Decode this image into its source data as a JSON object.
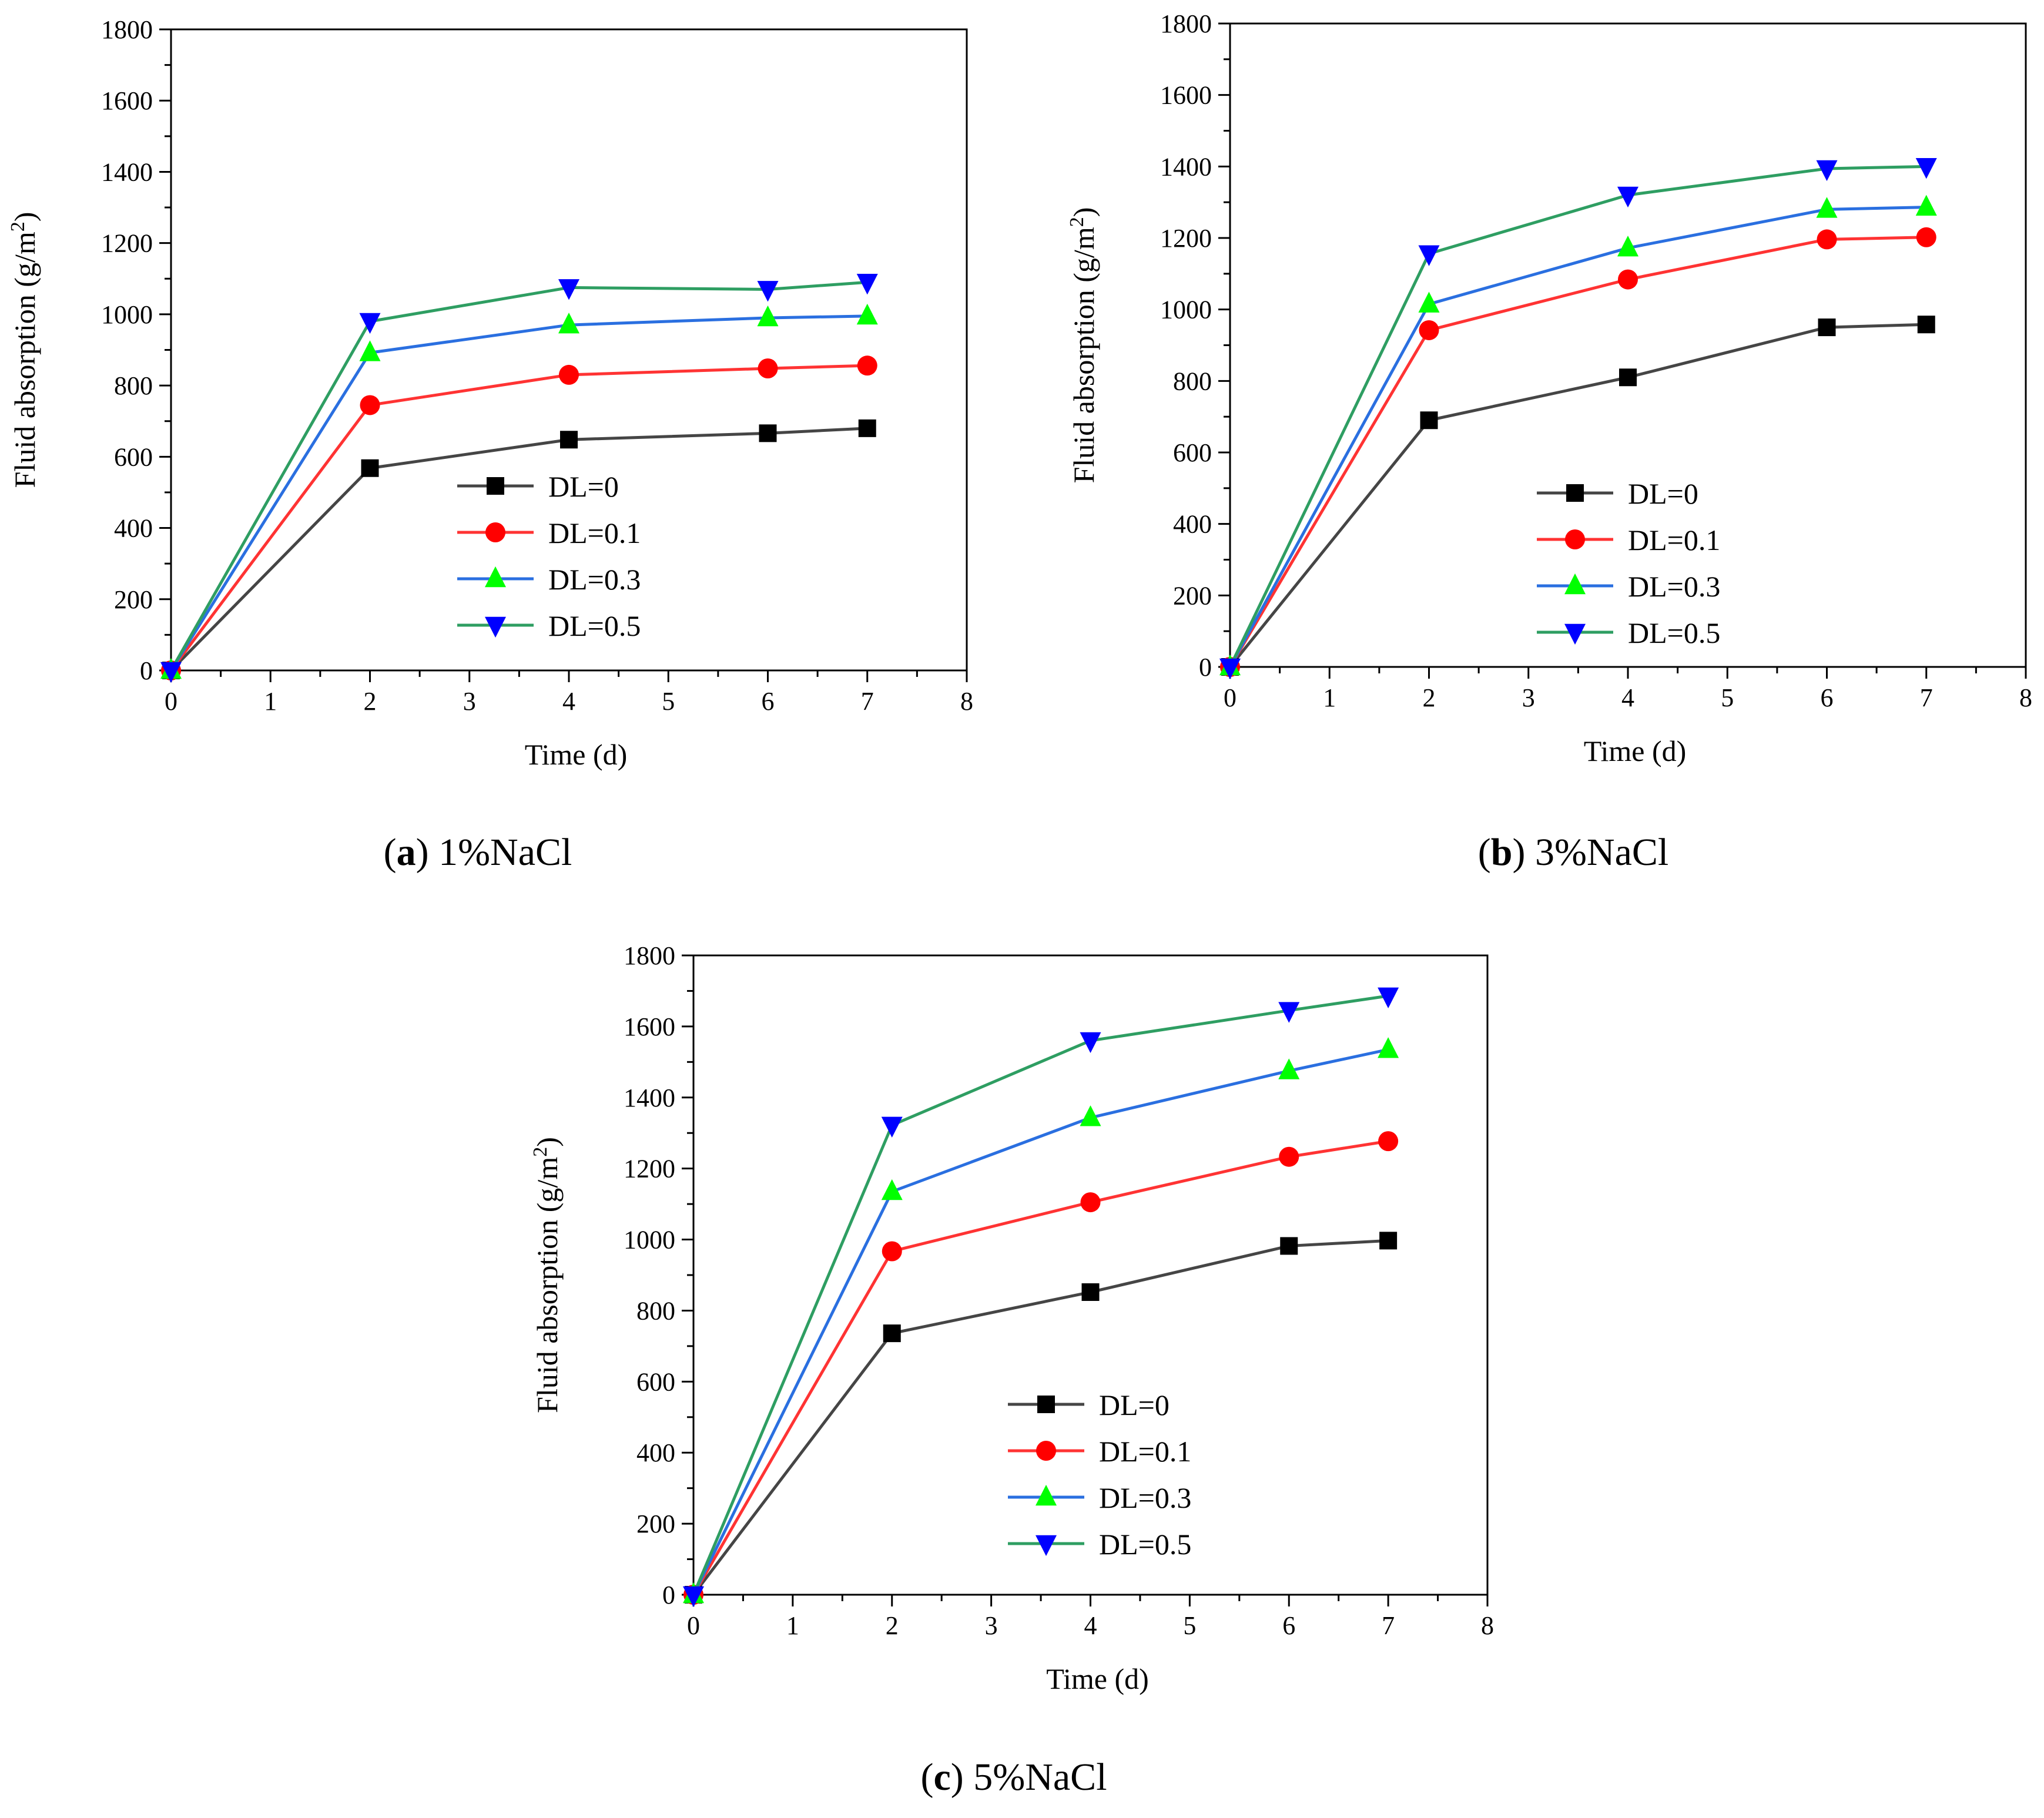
{
  "figure": {
    "charts": [
      "a",
      "b",
      "c"
    ]
  },
  "chart_data": [
    {
      "id": "a",
      "type": "line",
      "caption_letter": "a",
      "caption_text": "1%NaCl",
      "xlabel": "Time (d)",
      "ylabel_main": "Fluid absorption (g/m",
      "ylabel_sup": "2",
      "ylabel_close": ")",
      "xlim": [
        0,
        8
      ],
      "ylim": [
        0,
        1800
      ],
      "xticks": [
        0,
        1,
        2,
        3,
        4,
        5,
        6,
        7,
        8
      ],
      "yticks": [
        0,
        200,
        400,
        600,
        800,
        1000,
        1200,
        1400,
        1600,
        1800
      ],
      "legend_position": "center-bottom",
      "x": [
        0,
        2,
        4,
        6,
        7
      ],
      "series": [
        {
          "name": "DL=0",
          "line_color": "#454545",
          "marker_color": "#000000",
          "marker": "square",
          "values": [
            0,
            568,
            648,
            666,
            680
          ]
        },
        {
          "name": "DL=0.1",
          "line_color": "#ff3333",
          "marker_color": "#ff0000",
          "marker": "circle",
          "values": [
            0,
            745,
            830,
            848,
            856
          ]
        },
        {
          "name": "DL=0.3",
          "line_color": "#2a6fe0",
          "marker_color": "#00ff00",
          "marker": "triangle-up",
          "values": [
            0,
            892,
            970,
            990,
            995
          ]
        },
        {
          "name": "DL=0.5",
          "line_color": "#2e9e62",
          "marker_color": "#0000ff",
          "marker": "triangle-down",
          "values": [
            0,
            980,
            1075,
            1070,
            1090
          ]
        }
      ]
    },
    {
      "id": "b",
      "type": "line",
      "caption_letter": "b",
      "caption_text": "3%NaCl",
      "xlabel": "Time (d)",
      "ylabel_main": "Fluid absorption (g/m",
      "ylabel_sup": "2",
      "ylabel_close": ")",
      "xlim": [
        0,
        8
      ],
      "ylim": [
        0,
        1800
      ],
      "xticks": [
        0,
        1,
        2,
        3,
        4,
        5,
        6,
        7,
        8
      ],
      "yticks": [
        0,
        200,
        400,
        600,
        800,
        1000,
        1200,
        1400,
        1600,
        1800
      ],
      "legend_position": "center-bottom",
      "x": [
        0,
        2,
        4,
        6,
        7
      ],
      "series": [
        {
          "name": "DL=0",
          "line_color": "#454545",
          "marker_color": "#000000",
          "marker": "square",
          "values": [
            0,
            690,
            810,
            950,
            958
          ]
        },
        {
          "name": "DL=0.1",
          "line_color": "#ff3333",
          "marker_color": "#ff0000",
          "marker": "circle",
          "values": [
            0,
            942,
            1084,
            1196,
            1202
          ]
        },
        {
          "name": "DL=0.3",
          "line_color": "#2a6fe0",
          "marker_color": "#00ff00",
          "marker": "triangle-up",
          "values": [
            0,
            1015,
            1172,
            1280,
            1286
          ]
        },
        {
          "name": "DL=0.5",
          "line_color": "#2e9e62",
          "marker_color": "#0000ff",
          "marker": "triangle-down",
          "values": [
            0,
            1156,
            1320,
            1394,
            1400
          ]
        }
      ]
    },
    {
      "id": "c",
      "type": "line",
      "caption_letter": "c",
      "caption_text": "5%NaCl",
      "xlabel": "Time (d)",
      "ylabel_main": "Fluid absorption (g/m",
      "ylabel_sup": "2",
      "ylabel_close": ")",
      "xlim": [
        0,
        8
      ],
      "ylim": [
        0,
        1800
      ],
      "xticks": [
        0,
        1,
        2,
        3,
        4,
        5,
        6,
        7,
        8
      ],
      "yticks": [
        0,
        200,
        400,
        600,
        800,
        1000,
        1200,
        1400,
        1600,
        1800
      ],
      "legend_position": "center-bottom",
      "x": [
        0,
        2,
        4,
        6,
        7
      ],
      "series": [
        {
          "name": "DL=0",
          "line_color": "#454545",
          "marker_color": "#000000",
          "marker": "square",
          "values": [
            0,
            736,
            852,
            982,
            997
          ]
        },
        {
          "name": "DL=0.1",
          "line_color": "#ff3333",
          "marker_color": "#ff0000",
          "marker": "circle",
          "values": [
            0,
            967,
            1105,
            1233,
            1277
          ]
        },
        {
          "name": "DL=0.3",
          "line_color": "#2a6fe0",
          "marker_color": "#00ff00",
          "marker": "triangle-up",
          "values": [
            0,
            1135,
            1343,
            1475,
            1535
          ]
        },
        {
          "name": "DL=0.5",
          "line_color": "#2e9e62",
          "marker_color": "#0000ff",
          "marker": "triangle-down",
          "values": [
            0,
            1322,
            1560,
            1645,
            1686
          ]
        }
      ]
    }
  ]
}
